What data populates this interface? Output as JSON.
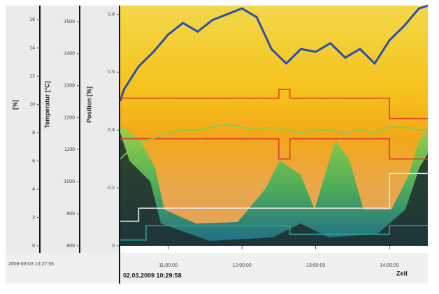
{
  "chart_data": {
    "type": "line",
    "y_label": "Position [%]",
    "y2_label": "Temperatur [°C]",
    "y3_label": "[%]",
    "x_label": "Zeit",
    "timestamp_left": "2009-03-03 10:27:55",
    "timestamp_main": "02.03.2009 10:29:58",
    "xlim": [
      10.35,
      14.52
    ],
    "xticks": [
      {
        "value": 11,
        "label": "11:00:00"
      },
      {
        "value": 12,
        "label": "12:00:00"
      },
      {
        "value": 13,
        "label": "13:00:00"
      },
      {
        "value": 14,
        "label": "14:00:00"
      }
    ],
    "ylim": [
      0,
      0.83
    ],
    "yticks": [
      0,
      0.2,
      0.4,
      0.6,
      0.8
    ],
    "y2lim": [
      800,
      1550
    ],
    "y2ticks": [
      800,
      900,
      1000,
      1100,
      1200,
      1300,
      1400,
      1500
    ],
    "y3lim": [
      0,
      17
    ],
    "y3ticks": [
      0,
      2,
      4,
      6,
      8,
      10,
      12,
      14,
      16
    ],
    "series": [
      {
        "color": "#2c4fa8",
        "x": [
          10.35,
          10.4,
          10.6,
          10.8,
          11.0,
          11.2,
          11.4,
          11.6,
          11.8,
          12.0,
          12.2,
          12.4,
          12.6,
          12.8,
          13.0,
          13.2,
          13.4,
          13.6,
          13.8,
          14.0,
          14.2,
          14.4,
          14.52
        ],
        "values": [
          0.5,
          0.54,
          0.62,
          0.67,
          0.73,
          0.77,
          0.74,
          0.78,
          0.8,
          0.82,
          0.79,
          0.68,
          0.63,
          0.68,
          0.67,
          0.7,
          0.65,
          0.68,
          0.63,
          0.71,
          0.76,
          0.82,
          0.83
        ]
      },
      {
        "color": "#e0402a",
        "x": [
          10.35,
          12.5,
          12.5,
          12.65,
          12.65,
          14.0,
          14.0,
          14.52
        ],
        "values": [
          0.51,
          0.51,
          0.54,
          0.54,
          0.51,
          0.51,
          0.44,
          0.44
        ]
      },
      {
        "color": "#e0402a",
        "x": [
          10.35,
          12.5,
          12.5,
          12.65,
          12.65,
          14.0,
          14.0,
          14.52
        ],
        "values": [
          0.37,
          0.37,
          0.3,
          0.3,
          0.37,
          0.37,
          0.3,
          0.3
        ]
      },
      {
        "color": "#7ccf5a",
        "x": [
          10.35,
          10.6,
          10.8,
          11.0,
          11.2,
          11.4,
          11.6,
          11.8,
          12.0,
          12.2,
          12.4,
          12.6,
          12.8,
          13.0,
          13.2,
          13.4,
          13.6,
          13.8,
          14.0,
          14.2,
          14.4,
          14.52
        ],
        "values": [
          0.3,
          0.36,
          0.37,
          0.39,
          0.4,
          0.4,
          0.41,
          0.42,
          0.41,
          0.4,
          0.41,
          0.4,
          0.39,
          0.4,
          0.4,
          0.39,
          0.4,
          0.39,
          0.41,
          0.41,
          0.4,
          0.4
        ]
      },
      {
        "color": "#e8e8e8",
        "x": [
          10.35,
          10.6,
          10.6,
          14.0,
          14.0,
          14.52
        ],
        "values": [
          0.085,
          0.085,
          0.13,
          0.13,
          0.25,
          0.25
        ]
      },
      {
        "color": "#2aa39a",
        "x": [
          10.35,
          10.7,
          10.7,
          12.65,
          12.65,
          14.0,
          14.0,
          14.52
        ],
        "values": [
          0.02,
          0.02,
          0.07,
          0.07,
          0.04,
          0.04,
          0.07,
          0.07
        ]
      }
    ]
  }
}
